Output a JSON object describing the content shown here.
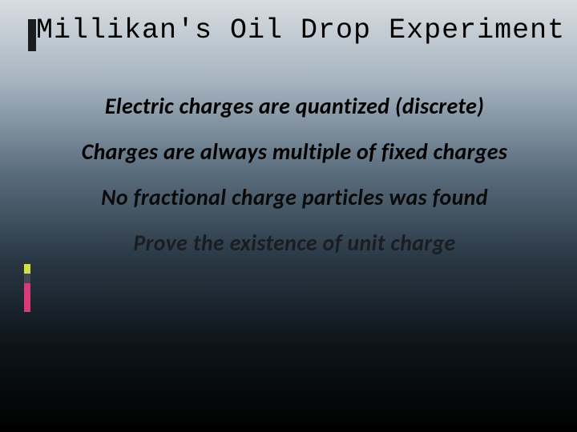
{
  "slide": {
    "title": "Millikan's Oil Drop Experiment",
    "bullets": [
      "Electric charges are quantized (discrete)",
      "Charges are always multiple of fixed charges",
      "No fractional charge particles was found",
      "Prove the existence of unit charge"
    ],
    "background_gradient": {
      "top": "#d8dde1",
      "mid_top": "#a8b6c2",
      "mid": "#5a6d7d",
      "mid_bottom": "#2a3845",
      "bottom": "#000000"
    },
    "accent_colors": {
      "yellow_green": "#d4e040",
      "dark_slate": "#404a55",
      "magenta": "#d93b76"
    },
    "title_font": "Courier New",
    "body_font": "Calibri",
    "body_style": "italic",
    "title_fontsize": 35,
    "body_fontsize": 28
  }
}
